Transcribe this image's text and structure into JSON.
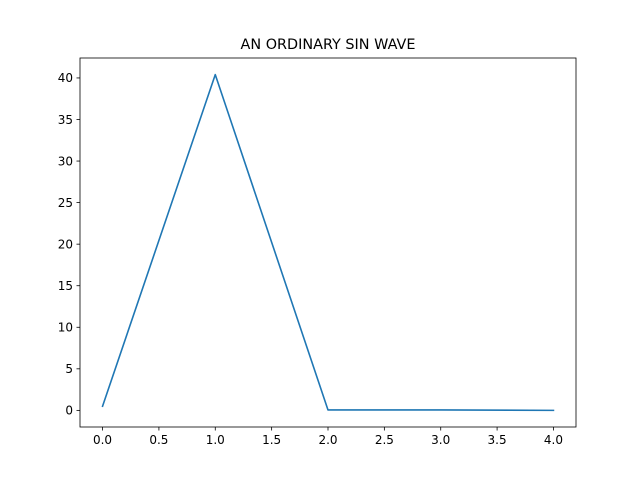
{
  "chart_data": {
    "type": "line",
    "title": "AN ORDINARY SIN WAVE",
    "xlabel": "",
    "ylabel": "",
    "x": [
      0,
      1,
      2,
      3,
      4
    ],
    "series": [
      {
        "values": [
          0.5,
          40.4,
          0.05,
          0.05,
          0.0
        ],
        "color": "#1f77b4"
      }
    ],
    "xlim": [
      -0.2,
      4.2
    ],
    "ylim": [
      -2.0,
      42.4
    ],
    "xticks": [
      0.0,
      0.5,
      1.0,
      1.5,
      2.0,
      2.5,
      3.0,
      3.5,
      4.0
    ],
    "xtick_labels": [
      "0.0",
      "0.5",
      "1.0",
      "1.5",
      "2.0",
      "2.5",
      "3.0",
      "3.5",
      "4.0"
    ],
    "yticks": [
      0,
      5,
      10,
      15,
      20,
      25,
      30,
      35,
      40
    ],
    "ytick_labels": [
      "0",
      "5",
      "10",
      "15",
      "20",
      "25",
      "30",
      "35",
      "40"
    ],
    "grid": false,
    "legend": "none"
  }
}
